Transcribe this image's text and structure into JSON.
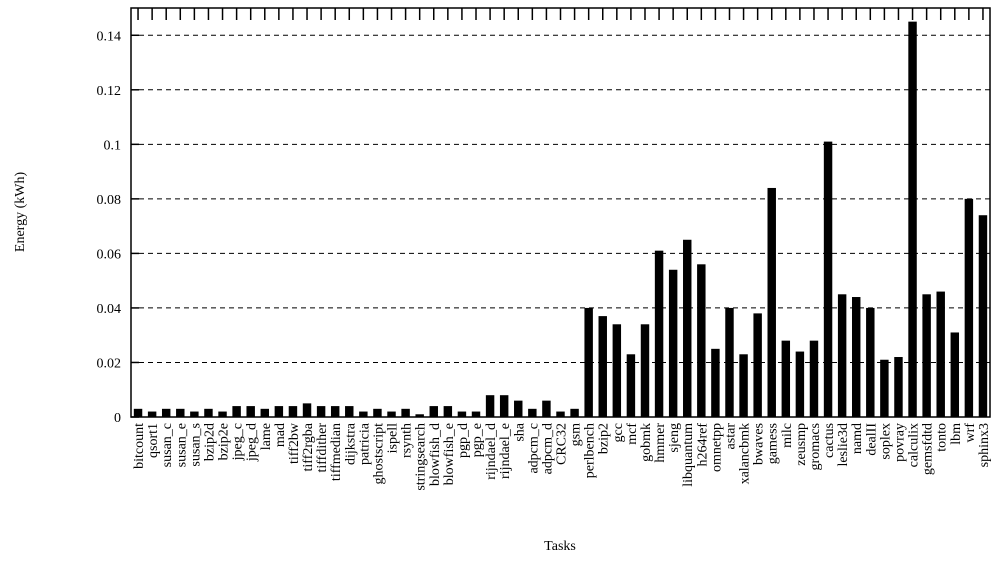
{
  "chart_data": {
    "type": "bar",
    "x_label": "Tasks",
    "y_label": "Energy (kWh)",
    "categories": [
      "bitcount",
      "qsort1",
      "susan_c",
      "susan_e",
      "susan_s",
      "bzip2d",
      "bzip2e",
      "jpeg_c",
      "jpeg_d",
      "lame",
      "mad",
      "tiff2bw",
      "tiff2rgba",
      "tiffdither",
      "tiffmedian",
      "dijkstra",
      "patricia",
      "ghostscript",
      "ispell",
      "rsynth",
      "stringsearch",
      "blowfish_d",
      "blowfish_e",
      "pgp_d",
      "pgp_e",
      "rijndael_d",
      "rijndael_e",
      "sha",
      "adpcm_c",
      "adpcm_d",
      "CRC32",
      "gsm",
      "perlbench",
      "bzip2",
      "gcc",
      "mcf",
      "gobmk",
      "hmmer",
      "sjeng",
      "libquantum",
      "h264ref",
      "omnetpp",
      "astar",
      "xalancbmk",
      "bwaves",
      "gamess",
      "milc",
      "zeusmp",
      "gromacs",
      "cactus",
      "leslie3d",
      "namd",
      "dealII",
      "soplex",
      "povray",
      "calculix",
      "gemsfdtd",
      "tonto",
      "lbm",
      "wrf",
      "sphinx3"
    ],
    "values": [
      0.003,
      0.002,
      0.003,
      0.003,
      0.002,
      0.003,
      0.002,
      0.004,
      0.004,
      0.003,
      0.004,
      0.004,
      0.005,
      0.004,
      0.004,
      0.004,
      0.002,
      0.003,
      0.002,
      0.003,
      0.001,
      0.004,
      0.004,
      0.002,
      0.002,
      0.008,
      0.008,
      0.006,
      0.003,
      0.006,
      0.002,
      0.003,
      0.04,
      0.037,
      0.034,
      0.023,
      0.034,
      0.061,
      0.054,
      0.065,
      0.056,
      0.025,
      0.04,
      0.023,
      0.038,
      0.084,
      0.028,
      0.024,
      0.028,
      0.101,
      0.045,
      0.044,
      0.04,
      0.021,
      0.022,
      0.145,
      0.045,
      0.046,
      0.031,
      0.08,
      0.074
    ],
    "color": "#000000",
    "ylim": [
      0,
      0.15
    ],
    "yticks": [
      0,
      0.02,
      0.04,
      0.06,
      0.08,
      0.1,
      0.12,
      0.14
    ],
    "grid": true
  }
}
